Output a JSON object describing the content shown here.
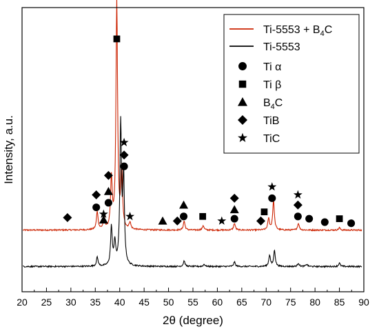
{
  "chart_data": {
    "type": "line",
    "xlabel": "2θ (degree)",
    "ylabel": "Intensity, a.u.",
    "xlim": [
      20,
      90
    ],
    "x_ticks": [
      "20",
      "25",
      "30",
      "35",
      "40",
      "45",
      "50",
      "55",
      "60",
      "65",
      "70",
      "75",
      "80",
      "85",
      "90"
    ],
    "y_ticks_labeled": false,
    "grid": false,
    "legend_position": "top-right",
    "series": [
      {
        "name": "Ti-5553 + B4C",
        "name_main": "Ti-5553 + B",
        "name_sub": "4",
        "name_tail": "C",
        "color": "#cc2200",
        "baseline": 0.18,
        "peaks": [
          {
            "x": 35.4,
            "y": 0.08
          },
          {
            "x": 36.8,
            "y": 0.05
          },
          {
            "x": 38.3,
            "y": 0.22
          },
          {
            "x": 39.4,
            "y": 1.0
          },
          {
            "x": 40.4,
            "y": 0.26
          },
          {
            "x": 42.1,
            "y": 0.03
          },
          {
            "x": 53.2,
            "y": 0.04
          },
          {
            "x": 57.1,
            "y": 0.02
          },
          {
            "x": 63.5,
            "y": 0.03
          },
          {
            "x": 70.5,
            "y": 0.05
          },
          {
            "x": 71.5,
            "y": 0.13
          },
          {
            "x": 76.6,
            "y": 0.03
          },
          {
            "x": 85.0,
            "y": 0.01
          }
        ]
      },
      {
        "name": "Ti-5553",
        "color": "#000000",
        "baseline": 0.02,
        "peaks": [
          {
            "x": 35.4,
            "y": 0.04
          },
          {
            "x": 38.3,
            "y": 0.17
          },
          {
            "x": 39.0,
            "y": 0.1
          },
          {
            "x": 40.2,
            "y": 0.62
          },
          {
            "x": 40.8,
            "y": 0.38
          },
          {
            "x": 53.2,
            "y": 0.025
          },
          {
            "x": 57.3,
            "y": 0.01
          },
          {
            "x": 63.5,
            "y": 0.02
          },
          {
            "x": 70.7,
            "y": 0.05
          },
          {
            "x": 71.7,
            "y": 0.07
          },
          {
            "x": 76.6,
            "y": 0.015
          },
          {
            "x": 78.3,
            "y": 0.01
          },
          {
            "x": 85.0,
            "y": 0.015
          }
        ]
      }
    ],
    "legend_markers": [
      {
        "shape": "circle",
        "label": "Ti α"
      },
      {
        "shape": "square",
        "label": "Ti β"
      },
      {
        "shape": "triangle",
        "label": "B4C",
        "label_main": "B",
        "label_sub": "4",
        "label_tail": "C"
      },
      {
        "shape": "diamond",
        "label": "TiB"
      },
      {
        "shape": "star",
        "label": "TiC"
      }
    ],
    "annotations": [
      {
        "x": 29.3,
        "y": 0.235,
        "shape": "diamond"
      },
      {
        "x": 35.2,
        "y": 0.28,
        "shape": "circle"
      },
      {
        "x": 35.2,
        "y": 0.335,
        "shape": "diamond"
      },
      {
        "x": 36.7,
        "y": 0.25,
        "shape": "star"
      },
      {
        "x": 36.7,
        "y": 0.225,
        "shape": "triangle"
      },
      {
        "x": 37.7,
        "y": 0.3,
        "shape": "circle"
      },
      {
        "x": 37.7,
        "y": 0.35,
        "shape": "triangle"
      },
      {
        "x": 37.7,
        "y": 0.42,
        "shape": "diamond"
      },
      {
        "x": 39.4,
        "y": 1.02,
        "shape": "square"
      },
      {
        "x": 40.9,
        "y": 0.46,
        "shape": "circle"
      },
      {
        "x": 40.9,
        "y": 0.51,
        "shape": "diamond"
      },
      {
        "x": 40.9,
        "y": 0.565,
        "shape": "star"
      },
      {
        "x": 42.1,
        "y": 0.24,
        "shape": "star"
      },
      {
        "x": 48.8,
        "y": 0.22,
        "shape": "triangle"
      },
      {
        "x": 51.8,
        "y": 0.22,
        "shape": "diamond"
      },
      {
        "x": 53.1,
        "y": 0.24,
        "shape": "circle"
      },
      {
        "x": 53.1,
        "y": 0.29,
        "shape": "triangle"
      },
      {
        "x": 57.0,
        "y": 0.24,
        "shape": "square"
      },
      {
        "x": 60.9,
        "y": 0.22,
        "shape": "star"
      },
      {
        "x": 63.5,
        "y": 0.23,
        "shape": "circle"
      },
      {
        "x": 63.5,
        "y": 0.27,
        "shape": "triangle"
      },
      {
        "x": 63.5,
        "y": 0.32,
        "shape": "diamond"
      },
      {
        "x": 68.9,
        "y": 0.22,
        "shape": "diamond"
      },
      {
        "x": 69.6,
        "y": 0.26,
        "shape": "square"
      },
      {
        "x": 71.2,
        "y": 0.32,
        "shape": "circle"
      },
      {
        "x": 71.2,
        "y": 0.37,
        "shape": "star"
      },
      {
        "x": 76.5,
        "y": 0.24,
        "shape": "circle"
      },
      {
        "x": 76.5,
        "y": 0.29,
        "shape": "diamond"
      },
      {
        "x": 76.5,
        "y": 0.335,
        "shape": "star"
      },
      {
        "x": 78.8,
        "y": 0.23,
        "shape": "circle"
      },
      {
        "x": 82.0,
        "y": 0.215,
        "shape": "circle"
      },
      {
        "x": 85.0,
        "y": 0.23,
        "shape": "square"
      },
      {
        "x": 87.4,
        "y": 0.21,
        "shape": "circle"
      }
    ]
  }
}
